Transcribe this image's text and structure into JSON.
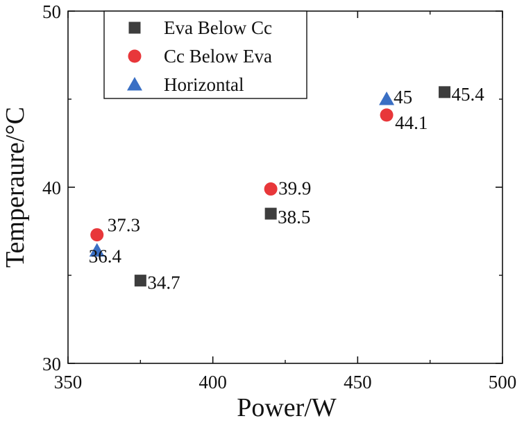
{
  "chart_data": {
    "type": "scatter",
    "title": "",
    "xlabel": "Power/W",
    "ylabel": "Temperaure/°C",
    "xlim": [
      350,
      500
    ],
    "ylim": [
      30,
      50
    ],
    "x_ticks": [
      350,
      400,
      450,
      500
    ],
    "x_tick_labels": [
      "350",
      "400",
      "450",
      "500"
    ],
    "y_ticks": [
      30,
      40,
      50
    ],
    "y_tick_labels": [
      "30",
      "40",
      "50"
    ],
    "grid": false,
    "legend_position": "top-left",
    "series": [
      {
        "name": "Eva Below Cc",
        "marker": "square",
        "color": "#3d3d3d",
        "x": [
          375,
          420,
          480
        ],
        "y": [
          34.7,
          38.5,
          45.4
        ],
        "labels": [
          "34.7",
          "38.5",
          "45.4"
        ]
      },
      {
        "name": "Cc Below Eva",
        "marker": "circle",
        "color": "#e8373a",
        "x": [
          360,
          420,
          460
        ],
        "y": [
          37.3,
          39.9,
          44.1
        ],
        "labels": [
          "37.3",
          "39.9",
          "44.1"
        ]
      },
      {
        "name": "Horizontal",
        "marker": "triangle",
        "color": "#3a6fc4",
        "x": [
          360,
          460
        ],
        "y": [
          36.4,
          45
        ],
        "labels": [
          "36.4",
          "45"
        ]
      }
    ]
  }
}
